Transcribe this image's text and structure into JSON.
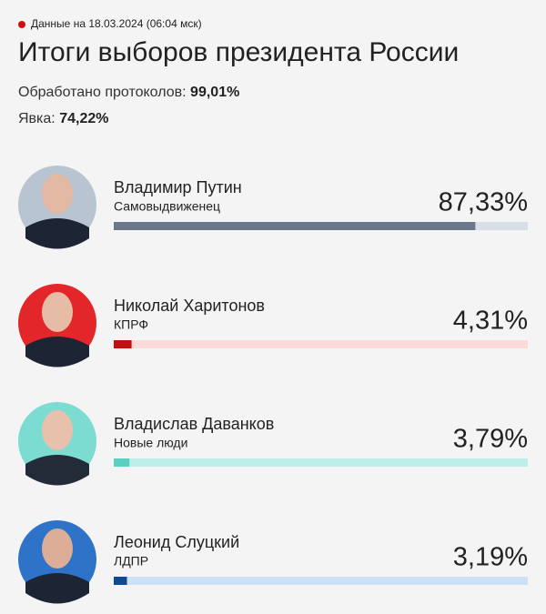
{
  "header": {
    "date": "Данные на 18.03.2024 (06:04 мск)",
    "title": "Итоги выборов президента России",
    "processed_label": "Обработано протоколов:",
    "processed_value": "99,01%",
    "turnout_label": "Явка:",
    "turnout_value": "74,22%"
  },
  "chart_data": {
    "type": "bar",
    "orientation": "horizontal",
    "categories": [
      "Владимир Путин",
      "Николай Харитонов",
      "Владислав Даванков",
      "Леонид Слуцкий"
    ],
    "parties": [
      "Самовыдвиженец",
      "КПРФ",
      "Новые люди",
      "ЛДПР"
    ],
    "values": [
      87.33,
      4.31,
      3.79,
      3.19
    ],
    "value_labels": [
      "87,33%",
      "4,31%",
      "3,79%",
      "3,19%"
    ],
    "colors": [
      "#6b788c",
      "#c40f0f",
      "#5ccfc3",
      "#0b4a98"
    ],
    "track_colors": [
      "#d9dfe8",
      "#fbdada",
      "#bdeee8",
      "#cde1f6"
    ],
    "xlim": [
      0,
      100
    ]
  }
}
